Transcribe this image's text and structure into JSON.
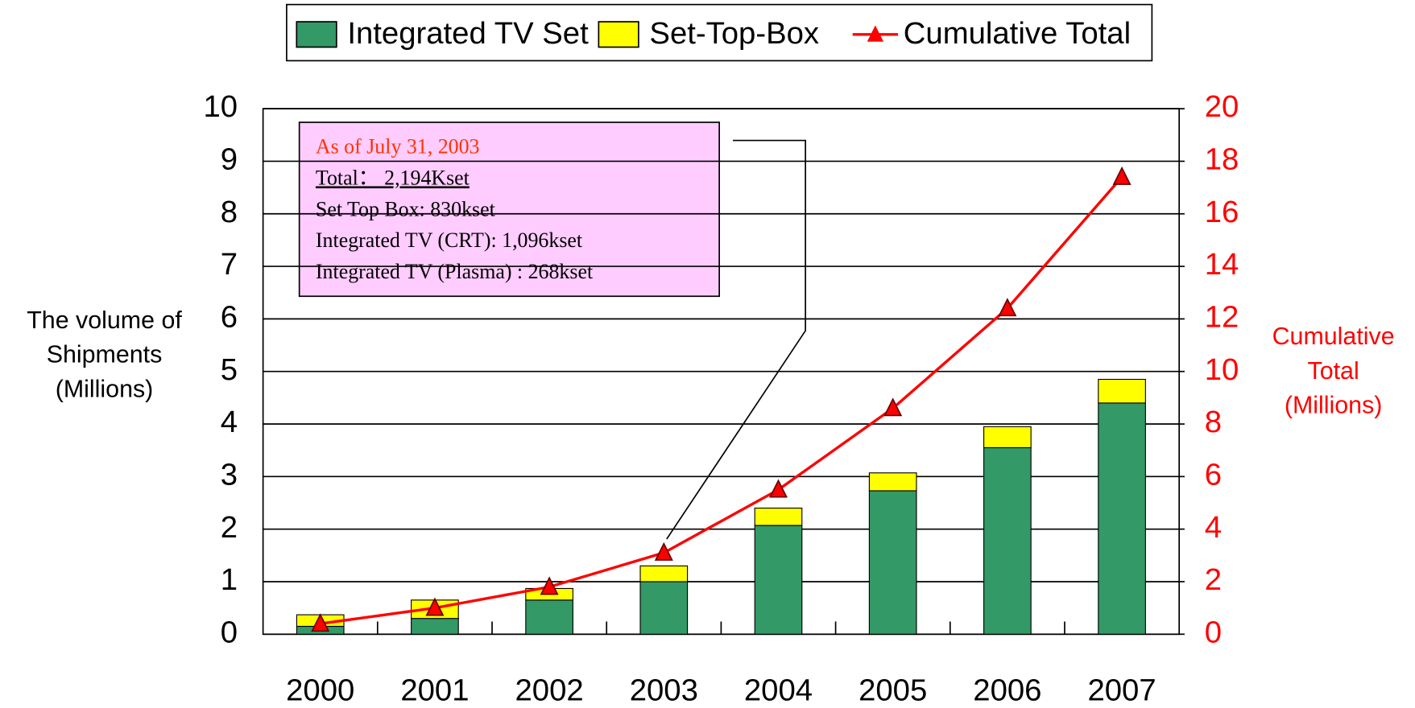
{
  "chart_data": {
    "type": "bar",
    "categories": [
      "2000",
      "2001",
      "2002",
      "2003",
      "2004",
      "2005",
      "2006",
      "2007"
    ],
    "series": [
      {
        "name": "Integrated TV Set",
        "color": "#339966",
        "values": [
          0.15,
          0.3,
          0.65,
          1.0,
          2.07,
          2.73,
          3.55,
          4.4
        ]
      },
      {
        "name": "Set-Top-Box",
        "color": "#ffff00",
        "values": [
          0.22,
          0.35,
          0.22,
          0.3,
          0.33,
          0.34,
          0.4,
          0.45
        ]
      },
      {
        "name": "Cumulative Total",
        "color": "#ff0000",
        "type": "line",
        "axis": "y2",
        "values": [
          0.4,
          1.0,
          1.8,
          3.1,
          5.5,
          8.6,
          12.4,
          17.4
        ]
      }
    ],
    "stacked": true,
    "ylim": [
      0,
      10
    ],
    "yticks": [
      0,
      1,
      2,
      3,
      4,
      5,
      6,
      7,
      8,
      9,
      10
    ],
    "y2lim": [
      0,
      20
    ],
    "y2ticks": [
      0,
      2,
      4,
      6,
      8,
      10,
      12,
      14,
      16,
      18,
      20
    ],
    "y_label": [
      "The volume of",
      "Shipments",
      "(Millions)"
    ],
    "y2_label": [
      "Cumulative",
      "Total",
      "(Millions)"
    ],
    "grid": true,
    "legend": "top",
    "annotation": {
      "lines": [
        "As of July 31, 2003",
        "Total：  2,194Kset",
        "Set Top Box:   830kset",
        "Integrated TV (CRT): 1,096kset",
        "Integrated TV (Plasma) : 268kset"
      ],
      "category": "2003"
    }
  }
}
